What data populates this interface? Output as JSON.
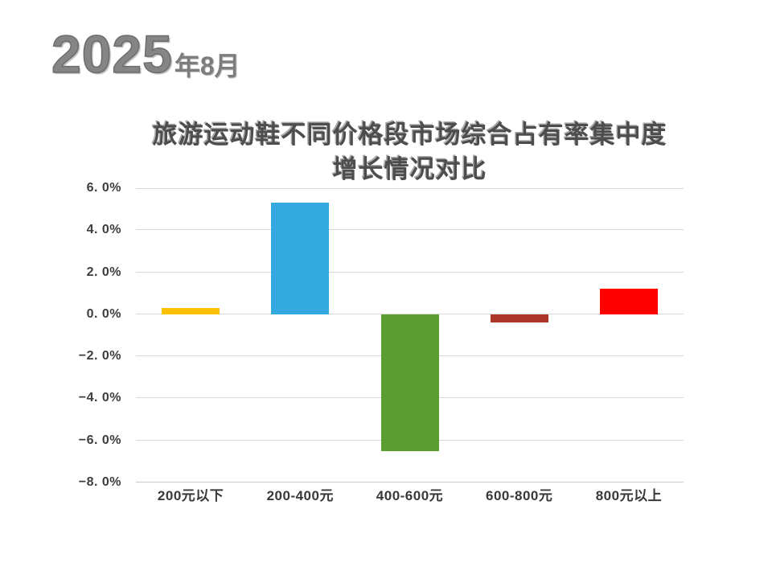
{
  "slide": {
    "background": "#ffffff",
    "date": {
      "year": "2025",
      "month_suffix": "年8月"
    }
  },
  "chart_data": {
    "type": "bar",
    "title": "旅游运动鞋不同价格段市场综合占有率集中度增长情况对比",
    "title_lines": [
      "旅游运动鞋不同价格段市场综合占有率集中度",
      "增长情况对比"
    ],
    "categories": [
      "200元以下",
      "200-400元",
      "400-600元",
      "600-800元",
      "800元以上"
    ],
    "values": [
      0.3,
      5.3,
      -6.5,
      -0.4,
      1.2
    ],
    "unit": "%",
    "bar_colors": [
      "#FFC000",
      "#33A9E0",
      "#5A9E32",
      "#AC3627",
      "#FF0000"
    ],
    "ylim": [
      -8,
      6
    ],
    "y_ticks": [
      {
        "value": 6,
        "label": "6. 0%"
      },
      {
        "value": 4,
        "label": "4. 0%"
      },
      {
        "value": 2,
        "label": "2. 0%"
      },
      {
        "value": 0,
        "label": "0. 0%"
      },
      {
        "value": -2,
        "label": "−2. 0%"
      },
      {
        "value": -4,
        "label": "−4. 0%"
      },
      {
        "value": -6,
        "label": "−6. 0%"
      },
      {
        "value": -8,
        "label": "−8. 0%"
      }
    ],
    "grid": true,
    "legend": "none",
    "xlabel": "",
    "ylabel": "",
    "colors": {
      "gridline": "#d9d9d9",
      "axis_label": "#3d3d3d",
      "title_text": "#4d4d4d",
      "date_text": "#7d7d7d"
    }
  }
}
